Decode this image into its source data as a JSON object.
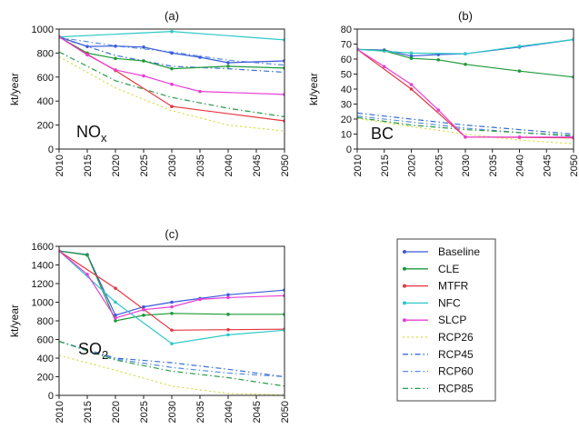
{
  "chart_data": [
    {
      "type": "line",
      "panel_label": "(a)",
      "species": {
        "base": "NO",
        "sub": "x"
      },
      "ylabel": "kt/year",
      "xlim": [
        2010,
        2050
      ],
      "ylim": [
        0,
        1000
      ],
      "xticks": [
        "2010",
        "2015",
        "2020",
        "2025",
        "2030",
        "2035",
        "2040",
        "2045",
        "2050"
      ],
      "yticks": [
        "0",
        "200",
        "400",
        "600",
        "800",
        "1000"
      ],
      "series": [
        {
          "name": "Baseline",
          "x": [
            2010,
            2015,
            2020,
            2025,
            2030,
            2035,
            2040,
            2050
          ],
          "y": [
            935,
            855,
            858,
            850,
            800,
            765,
            720,
            735
          ]
        },
        {
          "name": "CLE",
          "x": [
            2010,
            2015,
            2020,
            2025,
            2030,
            2040,
            2050
          ],
          "y": [
            935,
            800,
            755,
            735,
            670,
            690,
            675
          ]
        },
        {
          "name": "MTFR",
          "x": [
            2010,
            2015,
            2020,
            2030,
            2050
          ],
          "y": [
            935,
            790,
            655,
            355,
            235
          ]
        },
        {
          "name": "NFC",
          "x": [
            2010,
            2030,
            2050
          ],
          "y": [
            935,
            980,
            910
          ]
        },
        {
          "name": "SLCP",
          "x": [
            2010,
            2015,
            2020,
            2025,
            2030,
            2035,
            2050
          ],
          "y": [
            935,
            785,
            660,
            610,
            540,
            480,
            455
          ]
        },
        {
          "name": "RCP26",
          "x": [
            2010,
            2020,
            2030,
            2040,
            2050
          ],
          "y": [
            770,
            510,
            320,
            200,
            150
          ]
        },
        {
          "name": "RCP45",
          "x": [
            2010,
            2020,
            2030,
            2040,
            2050
          ],
          "y": [
            930,
            780,
            690,
            670,
            640
          ]
        },
        {
          "name": "RCP60",
          "x": [
            2010,
            2020,
            2030,
            2040,
            2050
          ],
          "y": [
            930,
            860,
            810,
            740,
            700
          ]
        },
        {
          "name": "RCP85",
          "x": [
            2010,
            2020,
            2030,
            2040,
            2050
          ],
          "y": [
            810,
            570,
            430,
            340,
            270
          ]
        }
      ]
    },
    {
      "type": "line",
      "panel_label": "(b)",
      "species": {
        "base": "BC",
        "sub": ""
      },
      "ylabel": "kt/year",
      "xlim": [
        2010,
        2050
      ],
      "ylim": [
        0,
        80
      ],
      "xticks": [
        "2010",
        "2015",
        "2020",
        "2025",
        "2030",
        "2035",
        "2040",
        "2045",
        "2050"
      ],
      "yticks": [
        "0",
        "10",
        "20",
        "30",
        "40",
        "50",
        "60",
        "70",
        "80"
      ],
      "series": [
        {
          "name": "Baseline",
          "x": [
            2010,
            2015,
            2020,
            2025,
            2030,
            2040,
            2050
          ],
          "y": [
            66.5,
            66,
            62,
            63,
            63.5,
            68,
            73
          ]
        },
        {
          "name": "CLE",
          "x": [
            2010,
            2015,
            2020,
            2025,
            2030,
            2040,
            2050
          ],
          "y": [
            66.5,
            65.5,
            60.5,
            59.5,
            56.5,
            52,
            48
          ]
        },
        {
          "name": "MTFR",
          "x": [
            2010,
            2020,
            2030,
            2040,
            2050
          ],
          "y": [
            66.5,
            40,
            8,
            7.8,
            7.5
          ]
        },
        {
          "name": "NFC",
          "x": [
            2010,
            2020,
            2030,
            2040,
            2050
          ],
          "y": [
            66.5,
            64,
            63.5,
            68.5,
            73
          ]
        },
        {
          "name": "SLCP",
          "x": [
            2010,
            2015,
            2020,
            2025,
            2030,
            2040,
            2050
          ],
          "y": [
            66.5,
            55,
            43,
            26,
            8,
            8,
            8
          ]
        },
        {
          "name": "RCP26",
          "x": [
            2010,
            2020,
            2030,
            2040,
            2050
          ],
          "y": [
            20.5,
            15,
            10,
            6,
            3.5
          ]
        },
        {
          "name": "RCP45",
          "x": [
            2010,
            2020,
            2030,
            2040,
            2050
          ],
          "y": [
            24,
            20,
            16,
            13,
            10
          ]
        },
        {
          "name": "RCP60",
          "x": [
            2010,
            2020,
            2030,
            2040,
            2050
          ],
          "y": [
            22,
            18,
            14,
            11,
            8.5
          ]
        },
        {
          "name": "RCP85",
          "x": [
            2010,
            2020,
            2030,
            2040,
            2050
          ],
          "y": [
            21,
            16,
            13,
            11,
            9
          ]
        }
      ]
    },
    {
      "type": "line",
      "panel_label": "(c)",
      "species": {
        "base": "SO",
        "sub": "2"
      },
      "ylabel": "kt/year",
      "xlim": [
        2010,
        2050
      ],
      "ylim": [
        0,
        1600
      ],
      "xticks": [
        "2010",
        "2015",
        "2020",
        "2025",
        "2030",
        "2035",
        "2040",
        "2045",
        "2050"
      ],
      "yticks": [
        "0",
        "200",
        "400",
        "600",
        "800",
        "1000",
        "1200",
        "1400",
        "1600"
      ],
      "series": [
        {
          "name": "Baseline",
          "x": [
            2010,
            2015,
            2020,
            2025,
            2030,
            2035,
            2040,
            2050
          ],
          "y": [
            1550,
            1510,
            860,
            950,
            1000,
            1040,
            1080,
            1130
          ]
        },
        {
          "name": "CLE",
          "x": [
            2010,
            2015,
            2020,
            2025,
            2030,
            2040,
            2050
          ],
          "y": [
            1550,
            1505,
            800,
            860,
            880,
            870,
            870
          ]
        },
        {
          "name": "MTFR",
          "x": [
            2010,
            2020,
            2030,
            2040,
            2050
          ],
          "y": [
            1550,
            1150,
            700,
            705,
            710
          ]
        },
        {
          "name": "NFC",
          "x": [
            2010,
            2020,
            2030,
            2040,
            2050
          ],
          "y": [
            1550,
            1000,
            555,
            650,
            700
          ]
        },
        {
          "name": "SLCP",
          "x": [
            2010,
            2015,
            2020,
            2025,
            2030,
            2035,
            2040,
            2050
          ],
          "y": [
            1550,
            1300,
            830,
            920,
            950,
            1030,
            1050,
            1070
          ]
        },
        {
          "name": "RCP26",
          "x": [
            2010,
            2020,
            2030,
            2040,
            2050
          ],
          "y": [
            430,
            270,
            100,
            20,
            5
          ]
        },
        {
          "name": "RCP45",
          "x": [
            2010,
            2020,
            2030,
            2040,
            2050
          ],
          "y": [
            580,
            400,
            350,
            280,
            200
          ]
        },
        {
          "name": "RCP60",
          "x": [
            2010,
            2020,
            2030,
            2040,
            2050
          ],
          "y": [
            580,
            390,
            300,
            240,
            200
          ]
        },
        {
          "name": "RCP85",
          "x": [
            2010,
            2020,
            2030,
            2040,
            2050
          ],
          "y": [
            580,
            380,
            260,
            190,
            100
          ]
        }
      ]
    }
  ],
  "legend": [
    {
      "name": "Baseline",
      "color": "#3a5bd9",
      "style": "solid",
      "marker": true
    },
    {
      "name": "CLE",
      "color": "#1f9a3a",
      "style": "solid",
      "marker": true
    },
    {
      "name": "MTFR",
      "color": "#e8343f",
      "style": "solid",
      "marker": true
    },
    {
      "name": "NFC",
      "color": "#2ec8c8",
      "style": "solid",
      "marker": true
    },
    {
      "name": "SLCP",
      "color": "#e83fd6",
      "style": "solid",
      "marker": true
    },
    {
      "name": "RCP26",
      "color": "#d4de3a",
      "style": "dotted",
      "marker": false
    },
    {
      "name": "RCP45",
      "color": "#3a6fd6",
      "style": "dashdot",
      "marker": false
    },
    {
      "name": "RCP60",
      "color": "#5a8fe0",
      "style": "dashdot",
      "marker": false
    },
    {
      "name": "RCP85",
      "color": "#2a9a4a",
      "style": "dashdot",
      "marker": false
    }
  ]
}
